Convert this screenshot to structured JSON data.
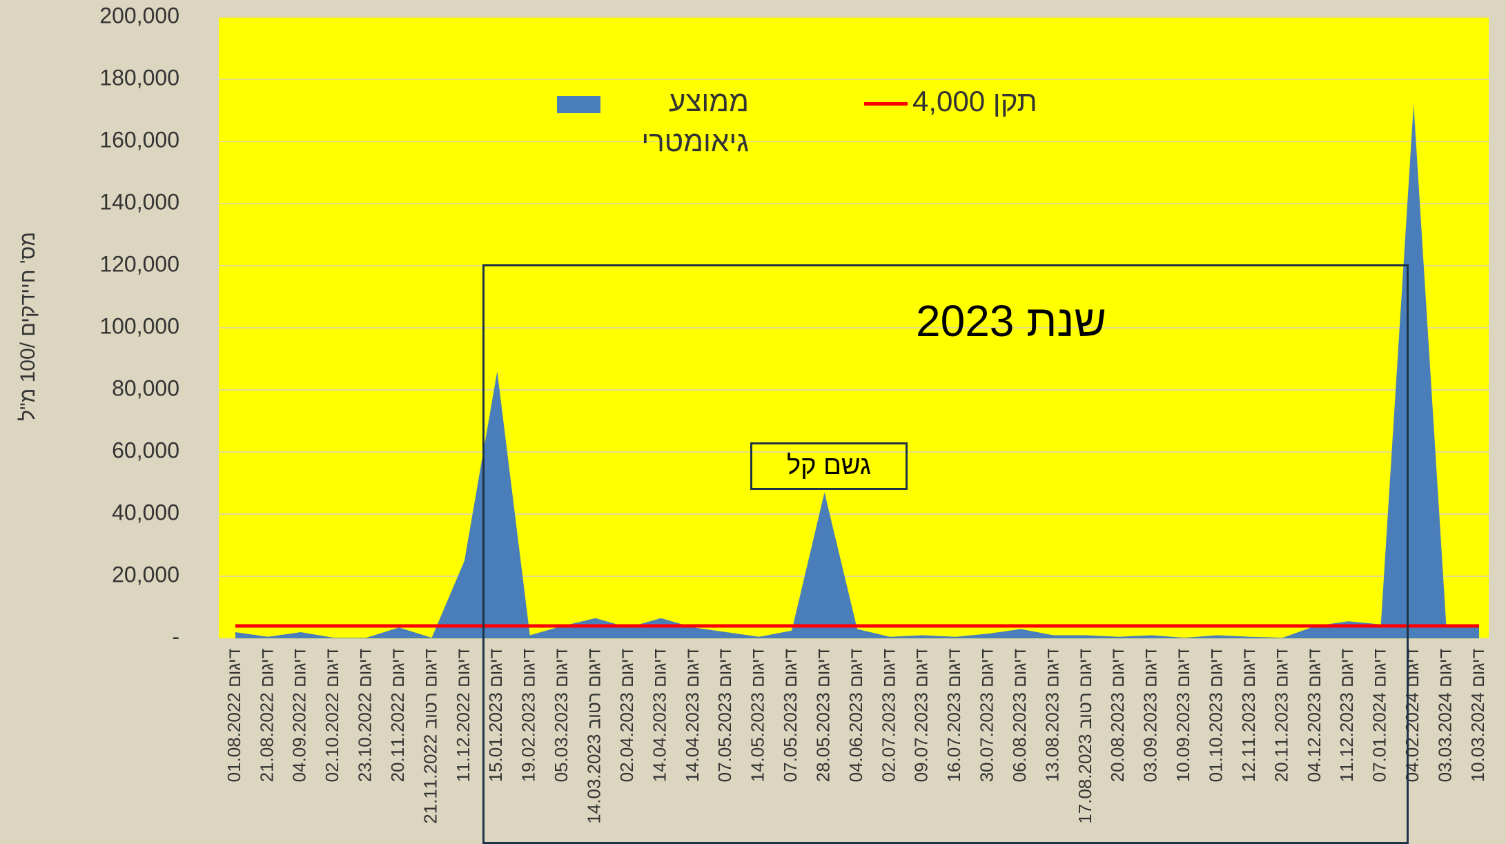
{
  "chart_data": {
    "type": "area",
    "y_label": "מס' חיידקים /100 מ\"ל",
    "categories": [
      "דיגום 01.08.2022",
      "דיגום 21.08.2022",
      "דיגום 04.09.2022",
      "דיגום 02.10.2022",
      "דיגום 23.10.2022",
      "דיגום 20.11.2022",
      "דיגום רטוב 21.11.2022",
      "דיגום 11.12.2022",
      "דיגום 15.01.2023",
      "דיגום 19.02.2023",
      "דיגום 05.03.2023",
      "דיגום רטוב 14.03.2023",
      "דיגום 02.04.2023",
      "דיגום 14.04.2023",
      "דיגום 14.04.2023",
      "דיגום 07.05.2023",
      "דיגום 14.05.2023",
      "דיגום 07.05.2023",
      "דיגום 28.05.2023",
      "דיגום 04.06.2023",
      "דיגום 02.07.2023",
      "דיגום 09.07.2023",
      "דיגום 16.07.2023",
      "דיגום 30.07.2023",
      "דיגום 06.08.2023",
      "דיגום 13.08.2023",
      "דיגום רטוב 17.08.2023",
      "דיגום 20.08.2023",
      "דיגום 03.09.2023",
      "דיגום 10.09.2023",
      "דיגום 01.10.2023",
      "דיגום 12.11.2023",
      "דיגום 20.11.2023",
      "דיגום 04.12.2023",
      "דיגום 11.12.2023",
      "דיגום 07.01.2024",
      "דיגום 04.02.2024",
      "דיגום 03.03.2024",
      "דיגום 10.03.2024"
    ],
    "series": [
      {
        "name": "ממוצע גיאומטרי",
        "color": "#4a7ebb",
        "values": [
          2000,
          500,
          2000,
          200,
          200,
          3500,
          200,
          25000,
          86000,
          1000,
          4000,
          6500,
          3500,
          6500,
          3500,
          2000,
          500,
          2500,
          47000,
          3000,
          500,
          1000,
          500,
          1500,
          3000,
          1000,
          1000,
          500,
          1000,
          200,
          1000,
          500,
          200,
          4000,
          5500,
          4500,
          172000,
          3500,
          4000
        ]
      },
      {
        "name": "תקן 4,000",
        "color": "#ff0000",
        "values": [
          4000,
          4000,
          4000,
          4000,
          4000,
          4000,
          4000,
          4000,
          4000,
          4000,
          4000,
          4000,
          4000,
          4000,
          4000,
          4000,
          4000,
          4000,
          4000,
          4000,
          4000,
          4000,
          4000,
          4000,
          4000,
          4000,
          4000,
          4000,
          4000,
          4000,
          4000,
          4000,
          4000,
          4000,
          4000,
          4000,
          4000,
          4000,
          4000
        ]
      }
    ],
    "ylim": [
      0,
      200000
    ],
    "yticks": [
      {
        "value": 0,
        "label": "-"
      },
      {
        "value": 20000,
        "label": "20,000"
      },
      {
        "value": 40000,
        "label": "40,000"
      },
      {
        "value": 60000,
        "label": "60,000"
      },
      {
        "value": 80000,
        "label": "80,000"
      },
      {
        "value": 100000,
        "label": "100,000"
      },
      {
        "value": 120000,
        "label": "120,000"
      },
      {
        "value": 140000,
        "label": "140,000"
      },
      {
        "value": 160000,
        "label": "160,000"
      },
      {
        "value": 180000,
        "label": "180,000"
      },
      {
        "value": 200000,
        "label": "200,000"
      }
    ],
    "grid": true,
    "annotations": [
      "שנת 2023",
      "גשם קל"
    ]
  }
}
